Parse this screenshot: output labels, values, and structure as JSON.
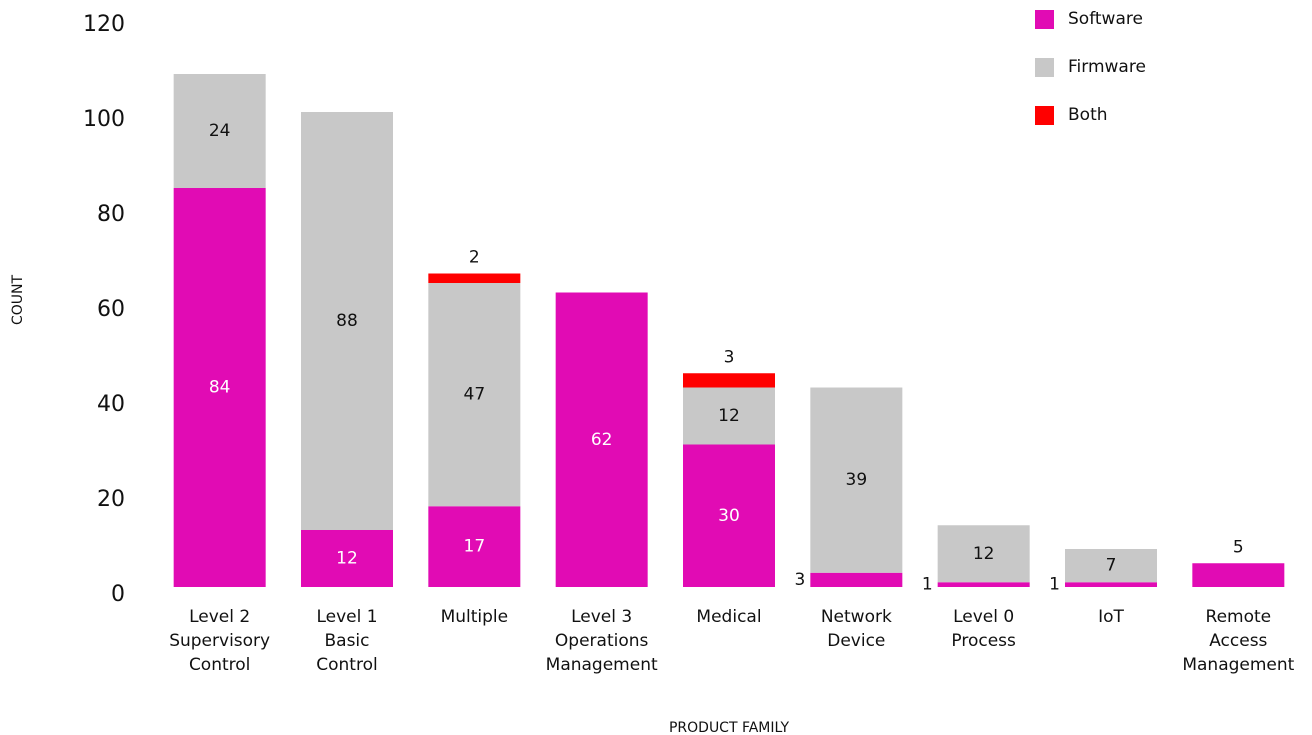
{
  "chart_data": {
    "type": "stacked_bar",
    "x_label": "PRODUCT FAMILY",
    "y_label": "COUNT",
    "categories": [
      "Level 2\nSupervisory\nControl",
      "Level 1\nBasic\nControl",
      "Multiple",
      "Level 3\nOperations\nManagement",
      "Medical",
      "Network\nDevice",
      "Level 0\nProcess",
      "IoT",
      "Remote\nAccess\nManagement"
    ],
    "series": [
      {
        "name": "Software",
        "color": "#e10bb4",
        "values": [
          84,
          12,
          17,
          62,
          30,
          3,
          1,
          1,
          5
        ]
      },
      {
        "name": "Firmware",
        "color": "#c8c8c8",
        "values": [
          24,
          88,
          47,
          0,
          12,
          39,
          12,
          7,
          0
        ]
      },
      {
        "name": "Both",
        "color": "#ff0000",
        "values": [
          0,
          0,
          2,
          0,
          3,
          0,
          0,
          0,
          0
        ]
      }
    ],
    "ylim": [
      0,
      120
    ],
    "yticks": [
      0,
      20,
      40,
      60,
      80,
      100,
      120
    ],
    "grid": false,
    "legend": "top-right"
  }
}
